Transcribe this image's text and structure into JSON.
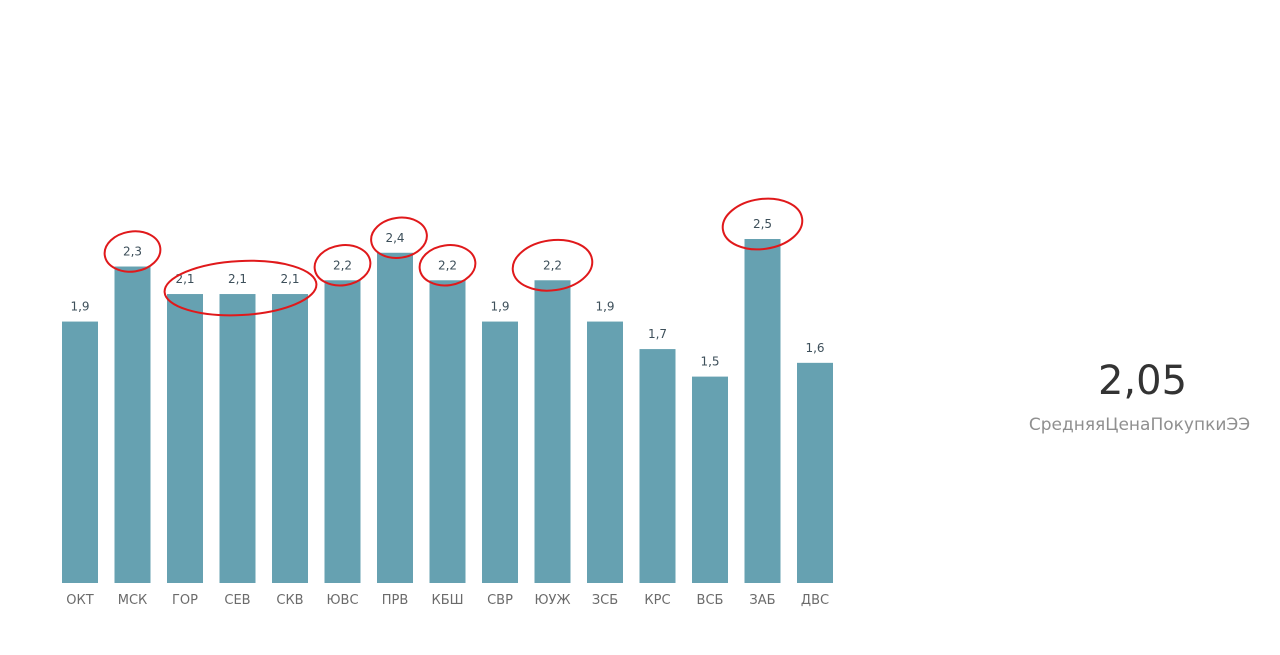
{
  "chart_data": {
    "type": "bar",
    "categories": [
      "ОКТ",
      "МСК",
      "ГОР",
      "СЕВ",
      "СКВ",
      "ЮВС",
      "ПРВ",
      "КБШ",
      "СВР",
      "ЮУЖ",
      "ЗСБ",
      "КРС",
      "ВСБ",
      "ЗАБ",
      "ДВС"
    ],
    "values": [
      1.9,
      2.3,
      2.1,
      2.1,
      2.1,
      2.2,
      2.4,
      2.2,
      1.9,
      2.2,
      1.9,
      1.7,
      1.5,
      2.5,
      1.6
    ],
    "data_labels": [
      "1,9",
      "2,3",
      "2,1",
      "2,1",
      "2,1",
      "2,2",
      "2,4",
      "2,2",
      "1,9",
      "2,2",
      "1,9",
      "1,7",
      "1,5",
      "2,5",
      "1,6"
    ],
    "bar_color": "#66a1b1",
    "annotation_color": "#e0191b",
    "annotated_categories": [
      "МСК",
      "ГОР",
      "СЕВ",
      "СКВ",
      "ЮВС",
      "ПРВ",
      "КБШ",
      "ЮУЖ",
      "ЗАБ"
    ],
    "ylim": [
      0,
      2.65
    ],
    "grid": false,
    "title": "",
    "xlabel": "",
    "ylabel": ""
  },
  "card": {
    "value": "2,05",
    "label": "СредняяЦенаПокупкиЭЭ"
  }
}
